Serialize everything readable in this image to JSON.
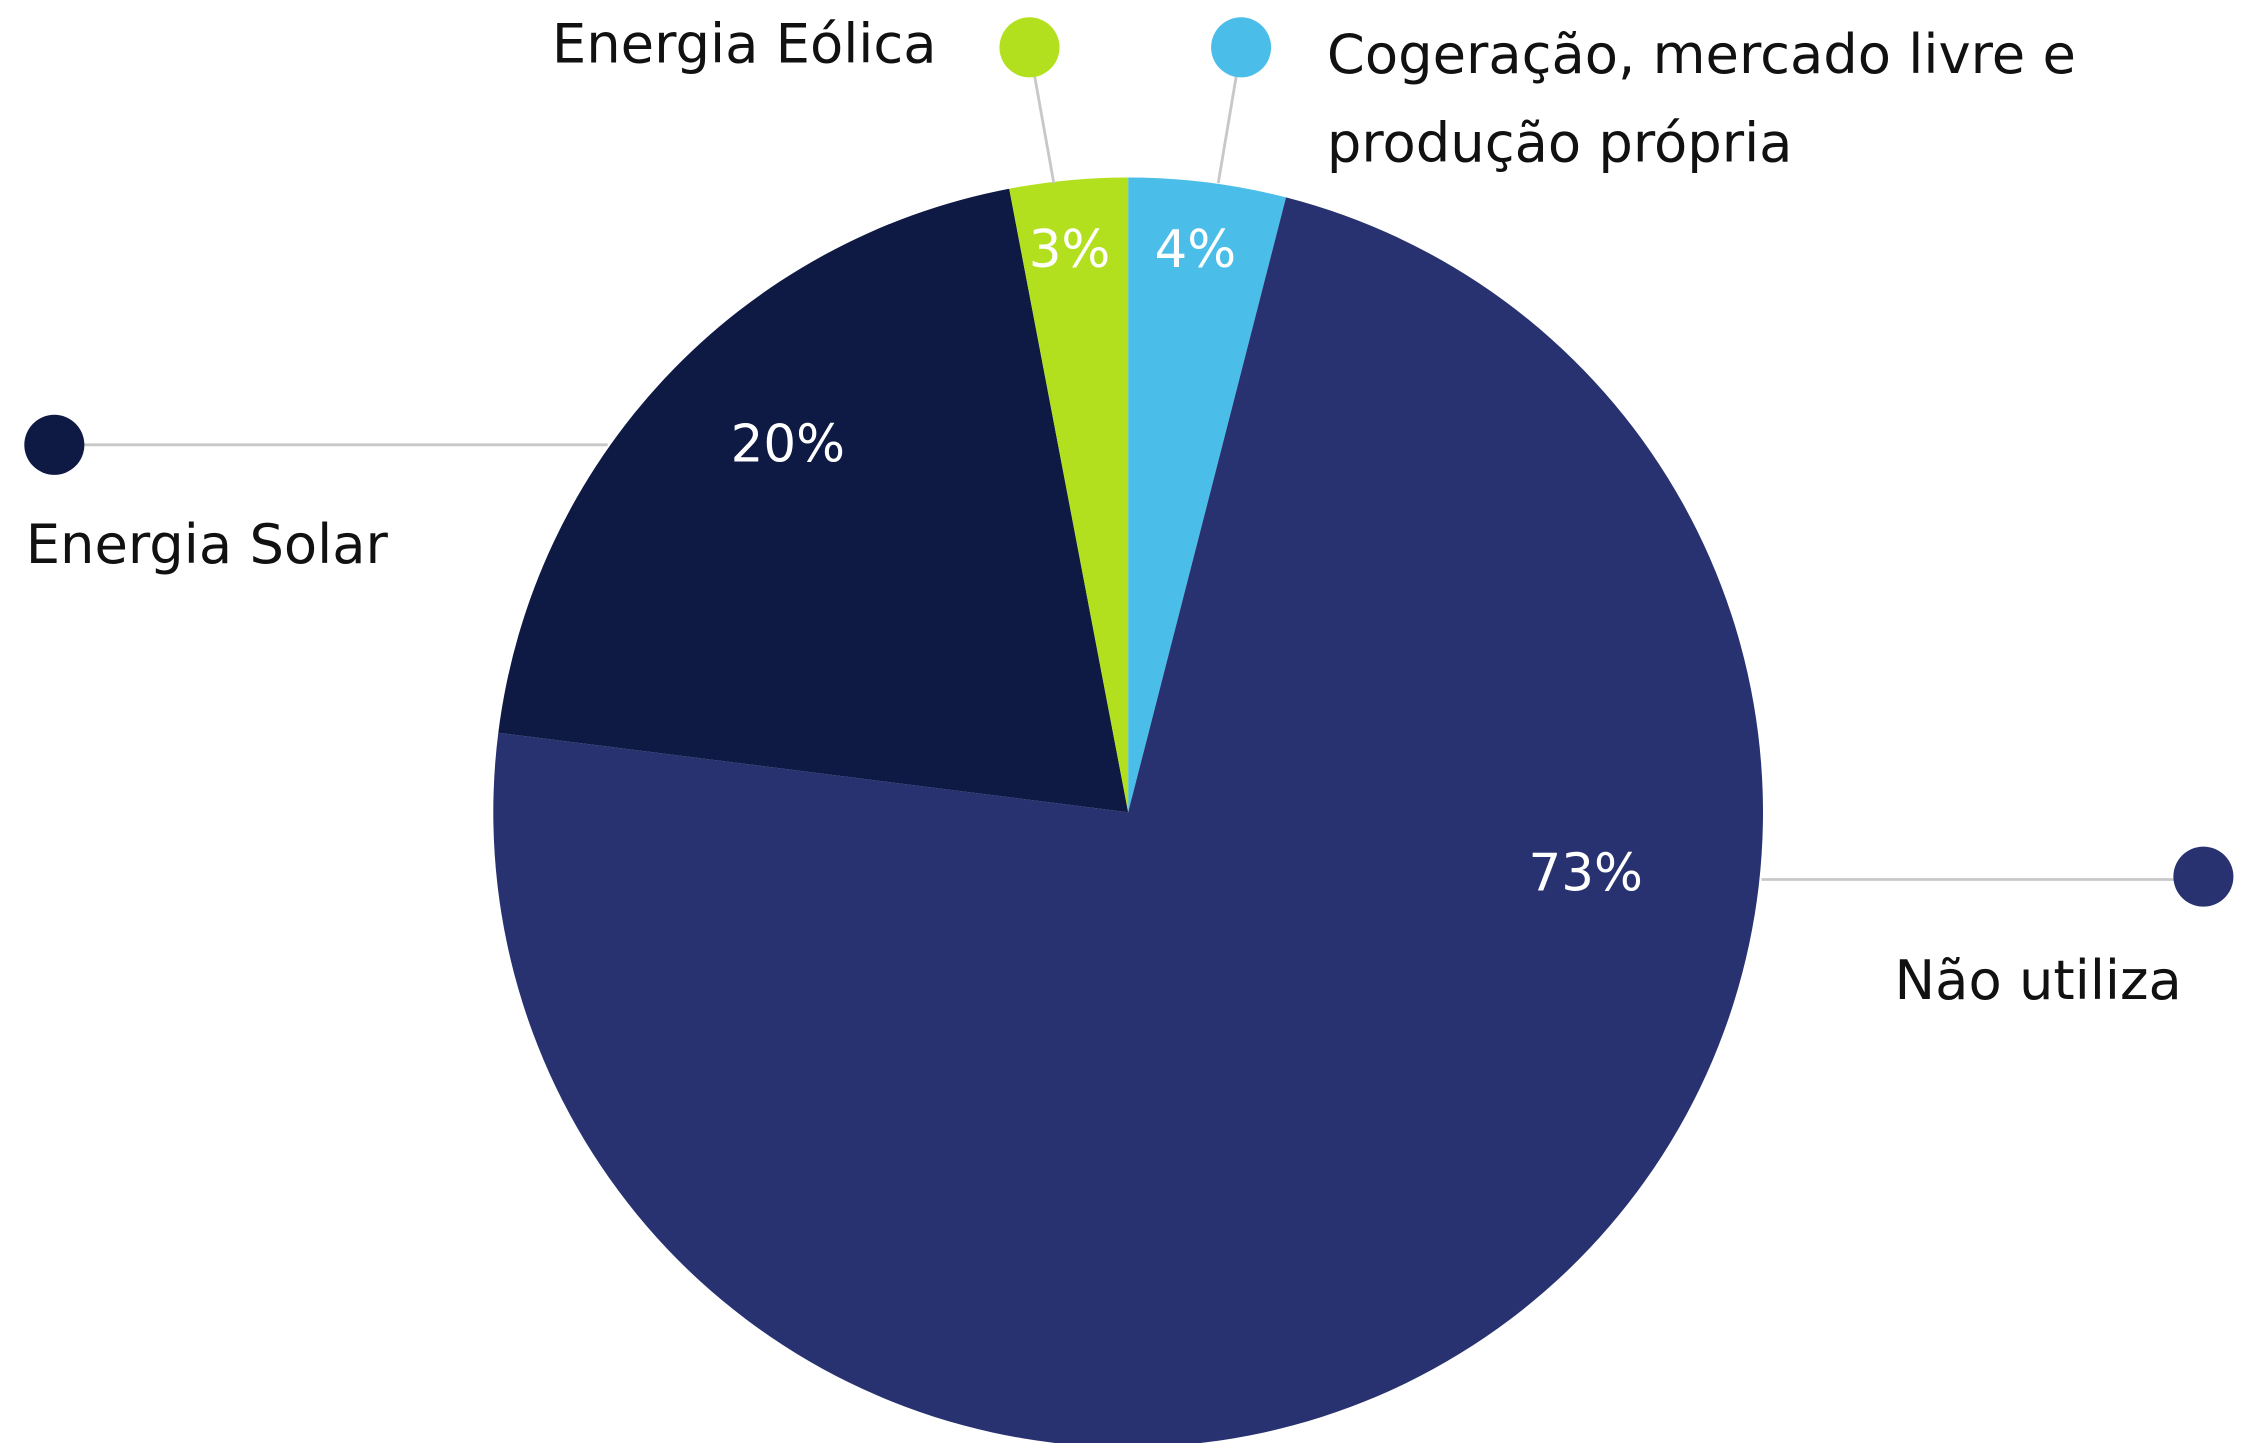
{
  "chart_data": {
    "type": "pie",
    "categories": [
      "Cogeração, mercado livre e produção própria",
      "Não utiliza",
      "Energia Solar",
      "Energia Eólica"
    ],
    "values": [
      4,
      73,
      20,
      3
    ],
    "value_labels": [
      "4%",
      "73%",
      "20%",
      "3%"
    ],
    "colors": [
      "#4bbde9",
      "#283270",
      "#0e1944",
      "#b2e01e"
    ]
  }
}
